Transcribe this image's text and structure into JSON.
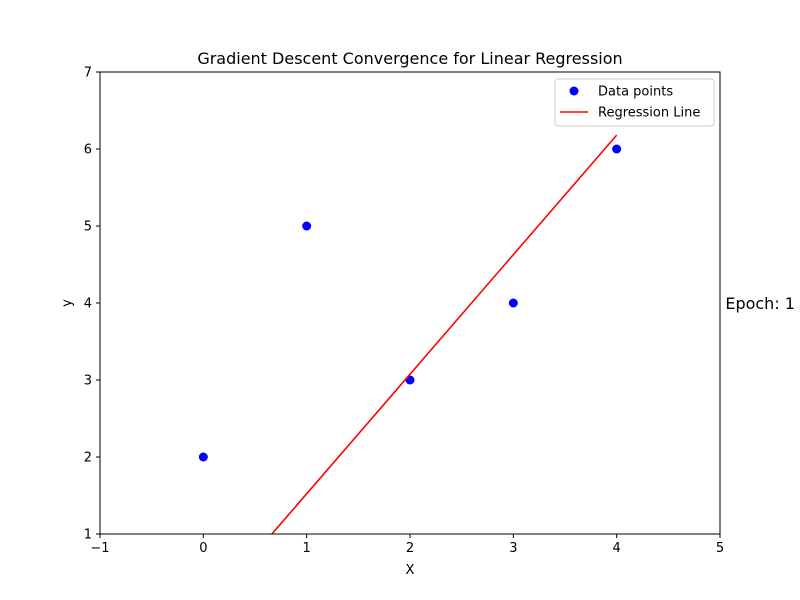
{
  "chart_data": {
    "type": "scatter",
    "title": "Gradient Descent Convergence for Linear Regression",
    "xlabel": "X",
    "ylabel": "y",
    "xlim": [
      -1,
      5
    ],
    "ylim": [
      1,
      7
    ],
    "xticks": [
      -1,
      0,
      1,
      2,
      3,
      4,
      5
    ],
    "yticks": [
      1,
      2,
      3,
      4,
      5,
      6,
      7
    ],
    "xtick_labels": [
      "−1",
      "0",
      "1",
      "2",
      "3",
      "4",
      "5"
    ],
    "ytick_labels": [
      "1",
      "2",
      "3",
      "4",
      "5",
      "6",
      "7"
    ],
    "grid": false,
    "legend_position": "top-right",
    "series": [
      {
        "name": "Data points",
        "kind": "scatter",
        "color": "#0000ff",
        "x": [
          0,
          1,
          2,
          3,
          4
        ],
        "y": [
          2,
          5,
          3,
          4,
          6
        ]
      },
      {
        "name": "Regression Line",
        "kind": "line",
        "color": "#ff0000",
        "x": [
          0,
          4
        ],
        "y": [
          -0.03,
          6.18
        ]
      }
    ],
    "annotations": [
      {
        "text": "Epoch: 1",
        "x": 5.1,
        "y": 4
      }
    ]
  }
}
